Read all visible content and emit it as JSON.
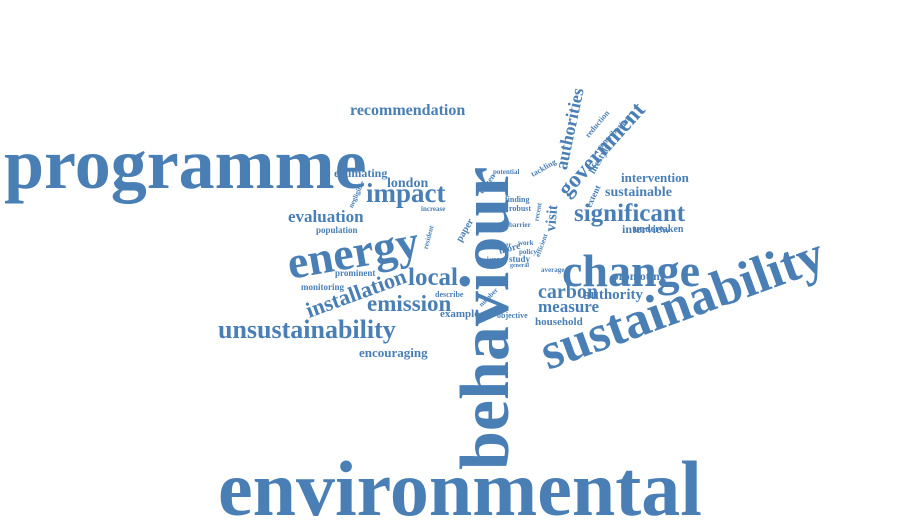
{
  "palette": {
    "word": "#4a7fb5",
    "background": "#ffffff"
  },
  "words": [
    {
      "id": "environmental",
      "text": "environmental"
    },
    {
      "id": "behaviour",
      "text": "behaviour"
    },
    {
      "id": "programme",
      "text": "programme"
    },
    {
      "id": "sustainability",
      "text": "sustainability"
    },
    {
      "id": "change",
      "text": "change"
    },
    {
      "id": "energy",
      "text": "energy"
    },
    {
      "id": "unsustainability",
      "text": "unsustainability"
    },
    {
      "id": "impact",
      "text": "impact"
    },
    {
      "id": "local",
      "text": "local"
    },
    {
      "id": "emission",
      "text": "emission"
    },
    {
      "id": "installation",
      "text": "installation"
    },
    {
      "id": "significant",
      "text": "significant"
    },
    {
      "id": "government",
      "text": "government"
    },
    {
      "id": "carbon",
      "text": "carbon"
    },
    {
      "id": "measure",
      "text": "measure"
    },
    {
      "id": "authority",
      "text": "authority"
    },
    {
      "id": "authorities",
      "text": "authorities"
    },
    {
      "id": "evaluation",
      "text": "evaluation"
    },
    {
      "id": "recommendation",
      "text": "recommendation"
    },
    {
      "id": "visit",
      "text": "visit"
    },
    {
      "id": "sustainable",
      "text": "sustainable"
    },
    {
      "id": "intervention",
      "text": "intervention"
    },
    {
      "id": "encouraging",
      "text": "encouraging"
    },
    {
      "id": "london",
      "text": "london"
    },
    {
      "id": "estimating",
      "text": "estimating"
    },
    {
      "id": "interview",
      "text": "interview"
    },
    {
      "id": "promoting",
      "text": "promoting"
    },
    {
      "id": "household",
      "text": "household"
    },
    {
      "id": "undertaken",
      "text": "undertaken"
    },
    {
      "id": "example",
      "text": "example"
    },
    {
      "id": "population",
      "text": "population"
    },
    {
      "id": "prominent",
      "text": "prominent"
    },
    {
      "id": "monitoring",
      "text": "monitoring"
    },
    {
      "id": "describe",
      "text": "describe"
    },
    {
      "id": "objective",
      "text": "objective"
    },
    {
      "id": "lifestyle",
      "text": "lifestyle"
    },
    {
      "id": "extent",
      "text": "extent"
    },
    {
      "id": "contribution",
      "text": "contribution"
    },
    {
      "id": "reduction",
      "text": "reduction"
    },
    {
      "id": "tackling",
      "text": "tackling"
    },
    {
      "id": "potential",
      "text": "potential"
    },
    {
      "id": "citizen",
      "text": "citizen"
    },
    {
      "id": "finding",
      "text": "finding"
    },
    {
      "id": "robust",
      "text": "robust"
    },
    {
      "id": "increase",
      "text": "increase"
    },
    {
      "id": "negligible",
      "text": "negligible"
    },
    {
      "id": "paper",
      "text": "paper"
    },
    {
      "id": "resident",
      "text": "resident"
    },
    {
      "id": "barrier",
      "text": "barrier"
    },
    {
      "id": "officer",
      "text": "officer"
    },
    {
      "id": "more",
      "text": "more"
    },
    {
      "id": "work",
      "text": "work"
    },
    {
      "id": "policy",
      "text": "policy"
    },
    {
      "id": "study",
      "text": "study"
    },
    {
      "id": "efficient",
      "text": "efficient"
    },
    {
      "id": "average",
      "text": "average"
    },
    {
      "id": "recent",
      "text": "recent"
    },
    {
      "id": "number",
      "text": "number"
    },
    {
      "id": "lamps",
      "text": "lamps"
    },
    {
      "id": "general",
      "text": "general"
    }
  ]
}
